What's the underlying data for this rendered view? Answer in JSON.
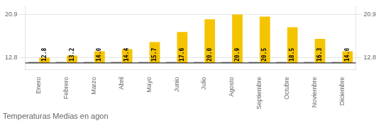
{
  "chart_data": {
    "type": "bar",
    "title": "Temperaturas Medias en agon",
    "categories": [
      "Enero",
      "Febrero",
      "Marzo",
      "Abril",
      "Mayo",
      "Junio",
      "Julio",
      "Agosto",
      "Septiembre",
      "Octubre",
      "Noviembre",
      "Diciembre"
    ],
    "base": 11.8,
    "series": [
      {
        "color": "#AAAAAA",
        "values": [
          12.0,
          12.0,
          12.0,
          12.0,
          12.0,
          12.0,
          12.0,
          12.0,
          12.0,
          12.0,
          12.0,
          12.0
        ]
      },
      {
        "color": "#F5C400",
        "values": [
          12.8,
          13.2,
          14.0,
          14.4,
          15.7,
          17.6,
          20.0,
          20.9,
          20.5,
          18.5,
          16.3,
          14.0
        ],
        "value_labels": [
          "12.8",
          "13.2",
          "14.0",
          "14.4",
          "15.7",
          "17.6",
          "20.0",
          "20.9",
          "20.5",
          "18.5",
          "16.3",
          "14.0"
        ],
        "data_labels": true
      }
    ],
    "ylim": [
      10.5,
      22.5
    ],
    "yticks": [
      12.8,
      20.9
    ],
    "y2lim": [
      10.5,
      22.5
    ],
    "y2ticks": [
      12.8,
      20.9
    ],
    "grid": true
  }
}
